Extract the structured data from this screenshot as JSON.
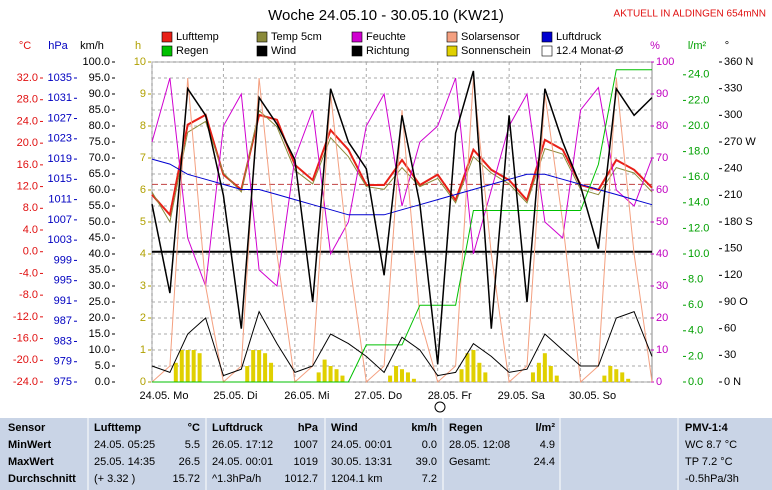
{
  "chart_data": {
    "type": "multi",
    "title": "Woche 24.05.10 - 30.05.10 (KW21)",
    "subtitle": "AKTUELL IN ALDINGEN 654mNN",
    "xlim": [
      0,
      168
    ],
    "xticks": [
      {
        "value": 0,
        "label": "24.05. Mo"
      },
      {
        "value": 24,
        "label": "25.05. Di"
      },
      {
        "value": 48,
        "label": "26.05. Mi"
      },
      {
        "value": 72,
        "label": "27.05. Do"
      },
      {
        "value": 96,
        "label": "28.05. Fr"
      },
      {
        "value": 120,
        "label": "29.05. Sa"
      },
      {
        "value": 144,
        "label": "30.05. So"
      }
    ],
    "grid": true,
    "axes": {
      "temp": {
        "title": "°C",
        "color": "#e01010",
        "lim": [
          -24,
          34.95
        ],
        "ticks": [
          {
            "value": -24,
            "label": "-24.0"
          },
          {
            "value": -20,
            "label": "-20.0"
          },
          {
            "value": -16,
            "label": "-16.0"
          },
          {
            "value": -12,
            "label": "-12.0"
          },
          {
            "value": -8,
            "label": "-8.0"
          },
          {
            "value": -4,
            "label": "-4.0"
          },
          {
            "value": 0,
            "label": "0.0"
          },
          {
            "value": 4,
            "label": "4.0"
          },
          {
            "value": 8,
            "label": "8.0"
          },
          {
            "value": 12,
            "label": "12.0"
          },
          {
            "value": 16,
            "label": "16.0"
          },
          {
            "value": 20,
            "label": "20.0"
          },
          {
            "value": 24,
            "label": "24.0"
          },
          {
            "value": 28,
            "label": "28.0"
          },
          {
            "value": 32,
            "label": "32.0"
          }
        ]
      },
      "hpa": {
        "title": "hPa",
        "color": "#0000c0",
        "lim": [
          975,
          1038.16
        ],
        "ticks": [
          975,
          979,
          983,
          987,
          991,
          995,
          999,
          1003,
          1007,
          1011,
          1015,
          1019,
          1023,
          1027,
          1031,
          1035
        ]
      },
      "kmh": {
        "title": "km/h",
        "color": "#000000",
        "lim": [
          0,
          100
        ],
        "ticks": [
          {
            "value": 0,
            "label": "0.0"
          },
          {
            "value": 5,
            "label": "5.0"
          },
          {
            "value": 10,
            "label": "10.0"
          },
          {
            "value": 15,
            "label": "15.0"
          },
          {
            "value": 20,
            "label": "20.0"
          },
          {
            "value": 25,
            "label": "25.0"
          },
          {
            "value": 30,
            "label": "30.0"
          },
          {
            "value": 35,
            "label": "35.0"
          },
          {
            "value": 40,
            "label": "40.0"
          },
          {
            "value": 45,
            "label": "45.0"
          },
          {
            "value": 50,
            "label": "50.0"
          },
          {
            "value": 55,
            "label": "55.0"
          },
          {
            "value": 60,
            "label": "60.0"
          },
          {
            "value": 65,
            "label": "65.0"
          },
          {
            "value": 70,
            "label": "70.0"
          },
          {
            "value": 75,
            "label": "75.0"
          },
          {
            "value": 80,
            "label": "80.0"
          },
          {
            "value": 85,
            "label": "85.0"
          },
          {
            "value": 90,
            "label": "90.0"
          },
          {
            "value": 95,
            "label": "95.0"
          },
          {
            "value": 100,
            "label": "100.0"
          }
        ]
      },
      "h": {
        "title": "h",
        "color": "#b0a000",
        "lim": [
          0,
          10
        ],
        "ticks": [
          0,
          1,
          2,
          3,
          4,
          5,
          6,
          7,
          8,
          9,
          10
        ]
      },
      "pct": {
        "title": "%",
        "color": "#c000c0",
        "lim": [
          0,
          100
        ],
        "ticks": [
          0,
          10,
          20,
          30,
          40,
          50,
          60,
          70,
          80,
          90,
          100
        ]
      },
      "rain": {
        "title": "l/m²",
        "color": "#00a000",
        "lim": [
          0,
          25
        ],
        "ticks": [
          {
            "value": 0,
            "label": "0.0"
          },
          {
            "value": 2,
            "label": "2.0"
          },
          {
            "value": 4,
            "label": "4.0"
          },
          {
            "value": 6,
            "label": "6.0"
          },
          {
            "value": 8,
            "label": "8.0"
          },
          {
            "value": 10,
            "label": "10.0"
          },
          {
            "value": 12,
            "label": "12.0"
          },
          {
            "value": 14,
            "label": "14.0"
          },
          {
            "value": 16,
            "label": "16.0"
          },
          {
            "value": 18,
            "label": "18.0"
          },
          {
            "value": 20,
            "label": "20.0"
          },
          {
            "value": 22,
            "label": "22.0"
          },
          {
            "value": 24,
            "label": "24.0"
          }
        ]
      },
      "dir": {
        "title": "°",
        "color": "#000000",
        "lim": [
          0,
          360
        ],
        "ticks": [
          {
            "value": 0,
            "label": "0 N"
          },
          30,
          60,
          {
            "value": 90,
            "label": "90 O"
          },
          120,
          150,
          {
            "value": 180,
            "label": "180 S"
          },
          210,
          240,
          {
            "value": 270,
            "label": "270 W"
          },
          300,
          330,
          {
            "value": 360,
            "label": "360 N"
          }
        ]
      }
    },
    "x": [
      0,
      6,
      12,
      18,
      24,
      30,
      36,
      42,
      48,
      54,
      60,
      66,
      72,
      78,
      84,
      90,
      96,
      102,
      108,
      114,
      120,
      126,
      132,
      138,
      144,
      150,
      156,
      162,
      168
    ],
    "series": [
      {
        "name": "Lufttemp",
        "color": "#e82018",
        "axis": "temp",
        "width": 2,
        "values": [
          10.5,
          6.8,
          23.4,
          25.2,
          14.2,
          11.4,
          25.2,
          24.3,
          16.0,
          13.2,
          22.4,
          18.8,
          12.3,
          12.3,
          16.9,
          12.3,
          14.2,
          9.5,
          18.8,
          15.1,
          13.2,
          9.5,
          20.6,
          18.8,
          12.3,
          11.4,
          16.9,
          15.1,
          11.8
        ]
      },
      {
        "name": "Temp 5cm",
        "color": "#8a8a3a",
        "axis": "temp",
        "width": 1,
        "values": [
          11.0,
          5.5,
          22.0,
          24.0,
          14.5,
          11.0,
          26.0,
          23.0,
          15.0,
          12.5,
          21.0,
          17.5,
          12.0,
          11.5,
          15.5,
          12.0,
          13.5,
          9.0,
          17.5,
          14.5,
          12.5,
          9.0,
          19.0,
          18.0,
          11.5,
          10.5,
          15.5,
          14.5,
          11.0
        ]
      },
      {
        "name": "Feuchte",
        "color": "#d000d0",
        "axis": "pct",
        "width": 1,
        "values": [
          75,
          95,
          45,
          30,
          80,
          90,
          35,
          30,
          70,
          85,
          40,
          50,
          80,
          90,
          55,
          75,
          80,
          95,
          40,
          60,
          80,
          90,
          50,
          45,
          85,
          92,
          60,
          55,
          70
        ]
      },
      {
        "name": "Solarsensor",
        "color": "#f4a080",
        "axis": "pct",
        "width": 1,
        "values": [
          0,
          5,
          95,
          30,
          0,
          5,
          95,
          40,
          0,
          5,
          90,
          40,
          0,
          5,
          85,
          20,
          0,
          5,
          95,
          40,
          0,
          5,
          90,
          50,
          0,
          5,
          95,
          40,
          0
        ]
      },
      {
        "name": "Luftdruck",
        "color": "#0000d0",
        "axis": "hpa",
        "width": 1,
        "values": [
          1019,
          1018,
          1016,
          1015,
          1014,
          1013,
          1013,
          1012,
          1011,
          1010,
          1009,
          1008,
          1008,
          1008,
          1009,
          1010,
          1011,
          1012,
          1013,
          1014,
          1015,
          1016,
          1016,
          1015,
          1014,
          1013,
          1012,
          1011,
          1010
        ]
      },
      {
        "name": "Regen",
        "color": "#00c000",
        "axis": "rain",
        "width": 1,
        "values": [
          0,
          0,
          0,
          0,
          0,
          0,
          0,
          0,
          0,
          0,
          0,
          0,
          2.9,
          2.9,
          2.9,
          6.0,
          6.0,
          6.0,
          13.4,
          13.4,
          13.4,
          13.4,
          13.4,
          13.4,
          13.4,
          17.0,
          24.4,
          24.4,
          24.4
        ]
      },
      {
        "name": "Wind",
        "color": "#000000",
        "axis": "kmh",
        "width": 1,
        "values": [
          5,
          3,
          15,
          20,
          2,
          4,
          22,
          12,
          3,
          5,
          15,
          12,
          8,
          3,
          14,
          10,
          2,
          3,
          12,
          8,
          3,
          4,
          15,
          10,
          5,
          5,
          20,
          22,
          8
        ]
      },
      {
        "name": "Richtung",
        "color": "#000000",
        "axis": "dir",
        "width": 1.5,
        "values": [
          200,
          100,
          330,
          300,
          210,
          60,
          320,
          290,
          250,
          90,
          330,
          270,
          240,
          120,
          300,
          200,
          20,
          280,
          350,
          60,
          300,
          90,
          330,
          270,
          220,
          150,
          330,
          300,
          320
        ]
      },
      {
        "name": "Sonnenschein",
        "color": "#e0d000",
        "axis": "h",
        "kind": "bar",
        "x": [
          8,
          10,
          12,
          14,
          16,
          32,
          34,
          36,
          38,
          40,
          56,
          58,
          60,
          62,
          64,
          80,
          82,
          84,
          86,
          88,
          104,
          106,
          108,
          110,
          112,
          128,
          130,
          132,
          134,
          136,
          152,
          154,
          156,
          158,
          160
        ],
        "values": [
          0.6,
          1.0,
          1.0,
          1.0,
          0.9,
          0.5,
          1.0,
          1.0,
          0.9,
          0.6,
          0.3,
          0.7,
          0.5,
          0.4,
          0.2,
          0.2,
          0.5,
          0.4,
          0.3,
          0.1,
          0.4,
          0.9,
          1.0,
          0.6,
          0.3,
          0.3,
          0.6,
          0.9,
          0.5,
          0.2,
          0.2,
          0.5,
          0.4,
          0.3,
          0.1
        ]
      }
    ],
    "mean_line": {
      "name": "12.4 Monat-Ø",
      "value": 12.4,
      "axis": "temp",
      "color": "#c04040"
    }
  },
  "table": {
    "columns": [
      {
        "title": "Sensor",
        "rows": [
          "MinWert",
          "MaxWert",
          "Durchschnitt"
        ]
      },
      {
        "title": "Lufttemp",
        "unit": "°C",
        "rows": [
          [
            "24.05. 05:25",
            "5.5"
          ],
          [
            "25.05. 14:35",
            "26.5"
          ],
          [
            "(+ 3.32 )",
            "15.72"
          ]
        ]
      },
      {
        "title": "Luftdruck",
        "unit": "hPa",
        "rows": [
          [
            "26.05. 17:12",
            "1007"
          ],
          [
            "24.05. 00:01",
            "1019"
          ],
          [
            "^1.3hPa/h",
            "1012.7"
          ]
        ]
      },
      {
        "title": "Wind",
        "unit": "km/h",
        "rows": [
          [
            "24.05. 00:01",
            "0.0"
          ],
          [
            "30.05. 13:31",
            "39.0"
          ],
          [
            "1204.1 km",
            "7.2"
          ]
        ]
      },
      {
        "title": "Regen",
        "unit": "l/m²",
        "rows": [
          [
            "28.05. 12:08",
            "4.9"
          ],
          [
            "Gesamt:",
            "24.4"
          ]
        ]
      },
      {
        "title": "PMV-1:4",
        "rows": [
          "WC 8.7 °C",
          "TP 7.2 °C",
          "-0.5hPa/3h"
        ]
      }
    ]
  }
}
